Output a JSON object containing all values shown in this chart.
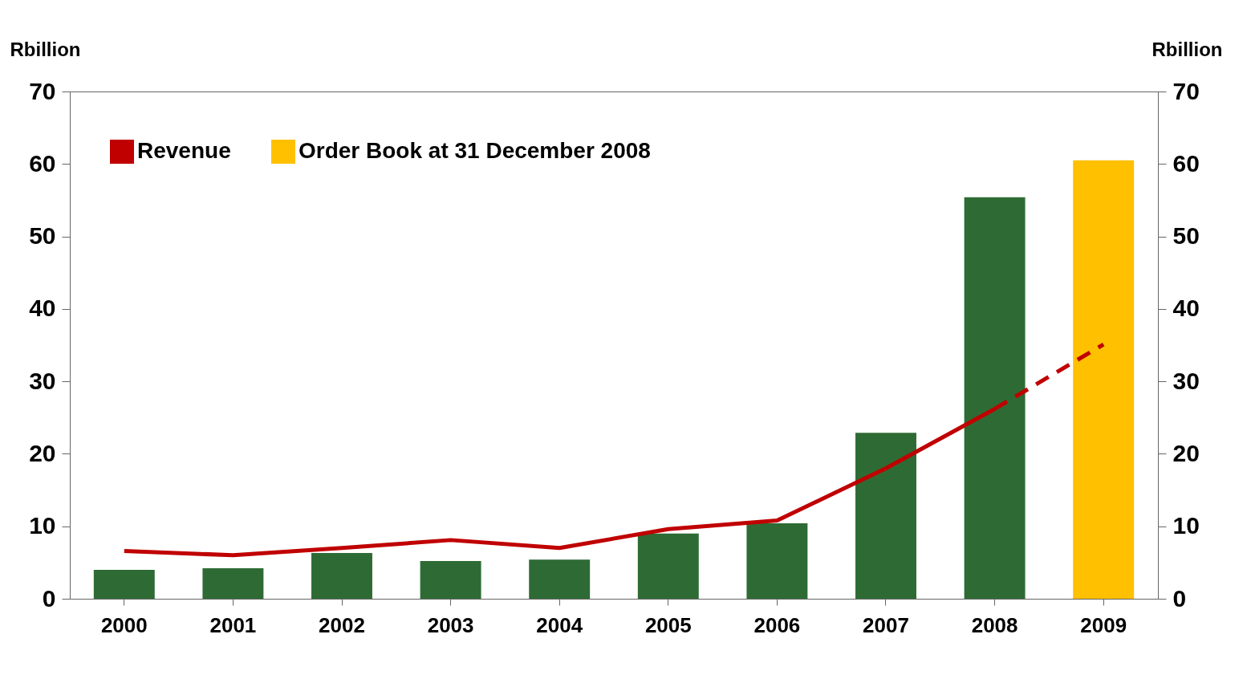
{
  "chart_data": {
    "type": "bar",
    "ylabel": "Rbillion",
    "y2label": "Rbillion",
    "categories": [
      "2000",
      "2001",
      "2002",
      "2003",
      "2004",
      "2005",
      "2006",
      "2007",
      "2008",
      "2009"
    ],
    "series": [
      {
        "type": "line",
        "name": "Revenue",
        "color": "#c00000",
        "line_style": "solid",
        "values": [
          6.6,
          6.0,
          7.0,
          8.1,
          7.0,
          9.6,
          10.8,
          18.0,
          26.2,
          null
        ]
      },
      {
        "type": "line",
        "color": "#c00000",
        "line_style": "dashed",
        "values": [
          null,
          null,
          null,
          null,
          null,
          null,
          null,
          null,
          26.2,
          35.1
        ]
      },
      {
        "type": "bar",
        "color": "#2e6b34",
        "values": [
          4.0,
          4.2,
          6.3,
          5.2,
          5.4,
          9.0,
          10.4,
          22.9,
          55.4,
          null
        ]
      },
      {
        "type": "bar",
        "name": "Order Book at 31 December 2008",
        "color": "#ffc000",
        "values": [
          null,
          null,
          null,
          null,
          null,
          null,
          null,
          null,
          null,
          60.5
        ]
      }
    ],
    "ylim": [
      0,
      70
    ],
    "yticks": [
      0,
      10,
      20,
      30,
      40,
      50,
      60,
      70
    ],
    "y2lim": [
      0,
      70
    ],
    "y2ticks": [
      0,
      10,
      20,
      30,
      40,
      50,
      60,
      70
    ],
    "grid": false,
    "legend": "top left"
  }
}
